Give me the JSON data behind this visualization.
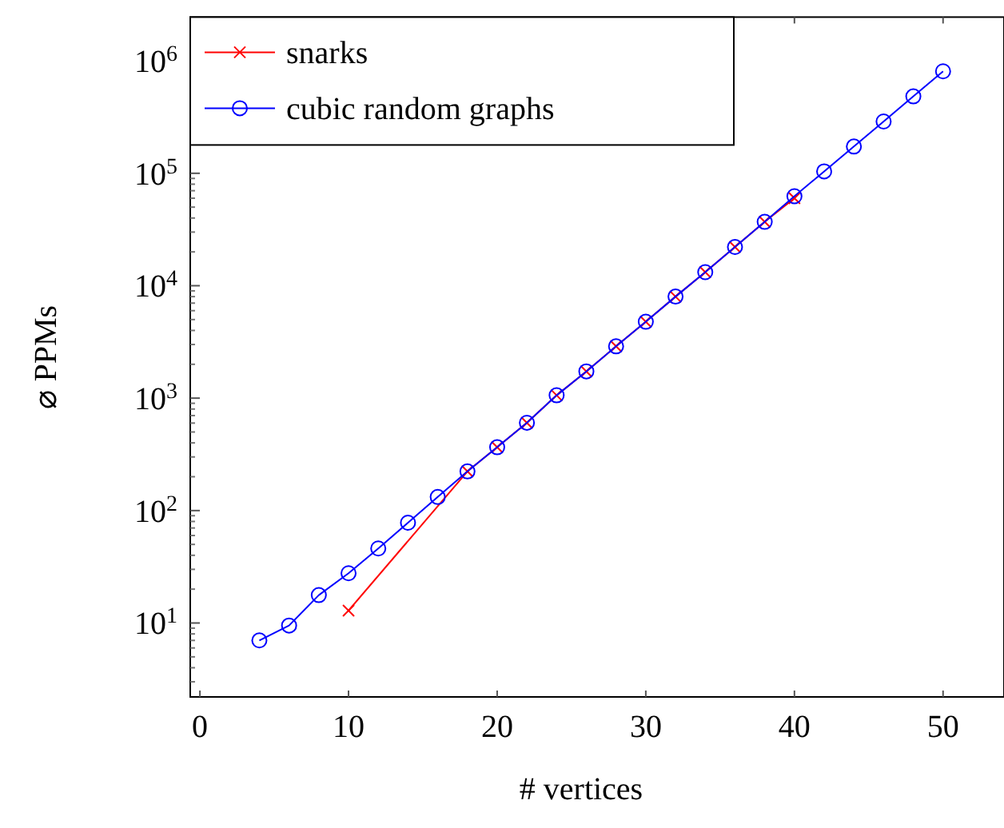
{
  "chart_data": {
    "type": "line",
    "xlabel": "# vertices",
    "ylabel": "⌀ PPMs",
    "log": "y",
    "grid": false,
    "legend": "top left",
    "xlim": [
      -0.65,
      54.1
    ],
    "ylim": [
      2.2,
      2450000
    ],
    "xticks": [
      0,
      10,
      20,
      30,
      40,
      50
    ],
    "yticks": [
      {
        "value": 10,
        "label": "10$^{1}$"
      },
      {
        "value": 100,
        "label": "10$^{2}$"
      },
      {
        "value": 1000,
        "label": "10$^{3}$"
      },
      {
        "value": 10000,
        "label": "10$^{4}$"
      },
      {
        "value": 100000,
        "label": "10$^{5}$"
      },
      {
        "value": 1000000,
        "label": "10$^{6}$"
      }
    ],
    "series": [
      {
        "name": "snarks",
        "color": "#ff0000",
        "marker": "cross",
        "x": [
          10,
          18,
          20,
          22,
          24,
          26,
          28,
          30,
          32,
          34,
          36,
          38,
          40
        ],
        "values": [
          12.9,
          223,
          366,
          604,
          1060,
          1730,
          2890,
          4780,
          8000,
          13200,
          22100,
          37000,
          60000
        ]
      },
      {
        "name": "cubic random graphs",
        "color": "#0000ff",
        "marker": "circle",
        "x": [
          4,
          6,
          8,
          10,
          12,
          14,
          16,
          18,
          20,
          22,
          24,
          26,
          28,
          30,
          32,
          34,
          36,
          38,
          40,
          42,
          44,
          46,
          48,
          50
        ],
        "values": [
          7.0,
          9.5,
          17.7,
          27.7,
          46,
          78,
          132,
          223,
          366,
          604,
          1060,
          1730,
          2890,
          4780,
          8000,
          13200,
          22100,
          37000,
          62500,
          104000,
          173000,
          289000,
          483000,
          807000
        ]
      }
    ]
  }
}
